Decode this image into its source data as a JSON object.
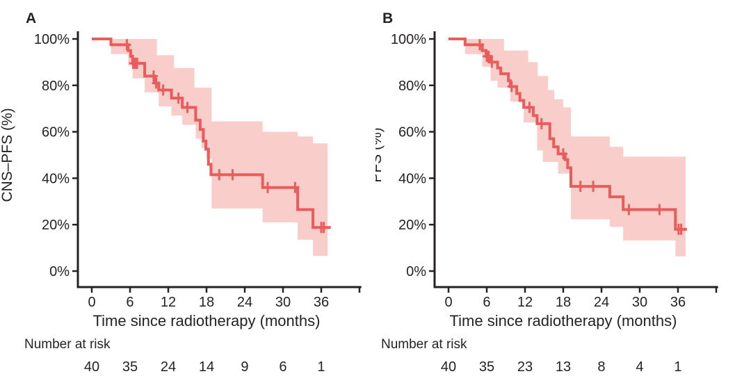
{
  "colors": {
    "curve": "#e85d5b",
    "band": "#f9cdc9",
    "text": "#262223",
    "axis": "#262223",
    "background": "#ffffff"
  },
  "chart_data": [
    {
      "type": "line",
      "subtype": "kaplan-meier-step",
      "panel_label": "A",
      "ylabel": "CNS–PFS (%)",
      "xlabel": "Time since radiotherapy (months)",
      "xlim": [
        0,
        42.3
      ],
      "ylim": [
        0,
        100
      ],
      "grid": false,
      "legend": "none",
      "x_ticks": [
        {
          "t": 0,
          "label": "0"
        },
        {
          "t": 6,
          "label": "6"
        },
        {
          "t": 12,
          "label": "12"
        },
        {
          "t": 18,
          "label": "18"
        },
        {
          "t": 24,
          "label": "24"
        },
        {
          "t": 30,
          "label": "30"
        },
        {
          "t": 36,
          "label": "36"
        },
        {
          "t": 42,
          "label": ""
        }
      ],
      "y_ticks": [
        {
          "v": 0,
          "label": "0%"
        },
        {
          "v": 20,
          "label": "20%"
        },
        {
          "v": 40,
          "label": "40%"
        },
        {
          "v": 60,
          "label": "60%"
        },
        {
          "v": 80,
          "label": "80%"
        },
        {
          "v": 100,
          "label": "100%"
        }
      ],
      "km_curve": [
        [
          0,
          100
        ],
        [
          3,
          97.5
        ],
        [
          5.7,
          95
        ],
        [
          6.1,
          92.5
        ],
        [
          6.4,
          89.5
        ],
        [
          8.3,
          84
        ],
        [
          9.9,
          81
        ],
        [
          10.5,
          78
        ],
        [
          12.5,
          74.5
        ],
        [
          14.2,
          70.5
        ],
        [
          16.3,
          65
        ],
        [
          17.0,
          61
        ],
        [
          17.5,
          56
        ],
        [
          17.9,
          52.5
        ],
        [
          18.3,
          46
        ],
        [
          18.7,
          41.5
        ],
        [
          26.8,
          36
        ],
        [
          32.3,
          26.5
        ],
        [
          34.7,
          18.8
        ]
      ],
      "curve_end_t": 37.5,
      "censor_marks": [
        [
          5.5,
          97.5
        ],
        [
          6.5,
          89.5
        ],
        [
          6.8,
          89.5
        ],
        [
          7.1,
          89.5
        ],
        [
          9.7,
          84
        ],
        [
          10.1,
          81
        ],
        [
          11.2,
          78
        ],
        [
          13.6,
          74.5
        ],
        [
          15.0,
          70.5
        ],
        [
          20.0,
          41.5
        ],
        [
          22.1,
          41.5
        ],
        [
          27.6,
          36
        ],
        [
          31.9,
          36
        ],
        [
          36.0,
          18.8
        ],
        [
          36.4,
          18.8
        ]
      ],
      "ci_upper": [
        [
          3,
          100
        ],
        [
          10.2,
          93
        ],
        [
          12.9,
          87.5
        ],
        [
          16.1,
          79
        ],
        [
          18.8,
          64.5
        ],
        [
          26.8,
          60
        ],
        [
          32.3,
          58
        ],
        [
          34.7,
          55
        ]
      ],
      "ci_lower": [
        [
          3,
          93.5
        ],
        [
          5.7,
          88.5
        ],
        [
          6.4,
          83
        ],
        [
          8.3,
          77
        ],
        [
          10.5,
          71
        ],
        [
          12.5,
          67
        ],
        [
          14.2,
          63
        ],
        [
          16.3,
          57
        ],
        [
          17.2,
          53
        ],
        [
          18.0,
          48.5
        ],
        [
          18.8,
          27
        ],
        [
          26.8,
          21
        ],
        [
          32.3,
          13.5
        ],
        [
          34.7,
          6.5
        ]
      ],
      "ci_end_t": 37.0,
      "number_at_risk": {
        "label": "Number at risk",
        "times": [
          0,
          6,
          12,
          18,
          24,
          30,
          36
        ],
        "counts": [
          "40",
          "35",
          "24",
          "14",
          "9",
          "6",
          "1"
        ]
      }
    },
    {
      "type": "line",
      "subtype": "kaplan-meier-step",
      "panel_label": "B",
      "ylabel": "PFS (%)",
      "xlabel": "Time since radiotherapy (months)",
      "xlim": [
        0,
        42.3
      ],
      "ylim": [
        0,
        100
      ],
      "grid": false,
      "legend": "none",
      "x_ticks": [
        {
          "t": 0,
          "label": "0"
        },
        {
          "t": 6,
          "label": "6"
        },
        {
          "t": 12,
          "label": "12"
        },
        {
          "t": 18,
          "label": "18"
        },
        {
          "t": 24,
          "label": "24"
        },
        {
          "t": 30,
          "label": "30"
        },
        {
          "t": 36,
          "label": "36"
        },
        {
          "t": 42,
          "label": ""
        }
      ],
      "y_ticks": [
        {
          "v": 0,
          "label": "0%"
        },
        {
          "v": 20,
          "label": "20%"
        },
        {
          "v": 40,
          "label": "40%"
        },
        {
          "v": 60,
          "label": "60%"
        },
        {
          "v": 80,
          "label": "80%"
        },
        {
          "v": 100,
          "label": "100%"
        }
      ],
      "km_curve": [
        [
          0,
          100
        ],
        [
          2.6,
          97.5
        ],
        [
          5.3,
          95
        ],
        [
          5.9,
          92.5
        ],
        [
          6.6,
          90
        ],
        [
          7.7,
          87.5
        ],
        [
          8.2,
          85
        ],
        [
          9.4,
          82
        ],
        [
          9.7,
          79.5
        ],
        [
          10.7,
          76.5
        ],
        [
          11.2,
          73.5
        ],
        [
          11.8,
          70.5
        ],
        [
          13.3,
          67
        ],
        [
          13.9,
          63.5
        ],
        [
          15.9,
          57
        ],
        [
          16.5,
          53.5
        ],
        [
          17.2,
          50.5
        ],
        [
          18.3,
          48
        ],
        [
          18.7,
          44.5
        ],
        [
          19.2,
          36.5
        ],
        [
          25.3,
          32
        ],
        [
          27.4,
          26.5
        ],
        [
          35.6,
          18
        ]
      ],
      "curve_end_t": 37.4,
      "censor_marks": [
        [
          4.9,
          97.5
        ],
        [
          6.0,
          92.5
        ],
        [
          6.3,
          92.5
        ],
        [
          6.8,
          90
        ],
        [
          9.9,
          79.5
        ],
        [
          12.7,
          70.5
        ],
        [
          14.6,
          63.5
        ],
        [
          18.0,
          50.5
        ],
        [
          20.7,
          36.5
        ],
        [
          22.7,
          36.5
        ],
        [
          28.3,
          26.5
        ],
        [
          33.1,
          26.5
        ],
        [
          36.1,
          18
        ],
        [
          36.5,
          18
        ]
      ],
      "ci_upper": [
        [
          2.6,
          100
        ],
        [
          8.7,
          95
        ],
        [
          12.5,
          90
        ],
        [
          14.0,
          84
        ],
        [
          15.6,
          78
        ],
        [
          16.6,
          74
        ],
        [
          18.0,
          70.5
        ],
        [
          19.2,
          58
        ],
        [
          25.3,
          53.5
        ],
        [
          27.4,
          49.3
        ]
      ],
      "ci_lower": [
        [
          2.6,
          93.5
        ],
        [
          5.3,
          88
        ],
        [
          6.6,
          82
        ],
        [
          7.7,
          79
        ],
        [
          9.7,
          73
        ],
        [
          11.8,
          64
        ],
        [
          13.9,
          52
        ],
        [
          14.8,
          47
        ],
        [
          17.2,
          42
        ],
        [
          19.2,
          22.3
        ],
        [
          25.3,
          19
        ],
        [
          27.4,
          13.2
        ],
        [
          35.6,
          6.4
        ]
      ],
      "ci_end_t": 37.2,
      "number_at_risk": {
        "label": "Number at risk",
        "times": [
          0,
          6,
          12,
          18,
          24,
          30,
          36
        ],
        "counts": [
          "40",
          "35",
          "23",
          "13",
          "8",
          "4",
          "1"
        ]
      }
    }
  ]
}
